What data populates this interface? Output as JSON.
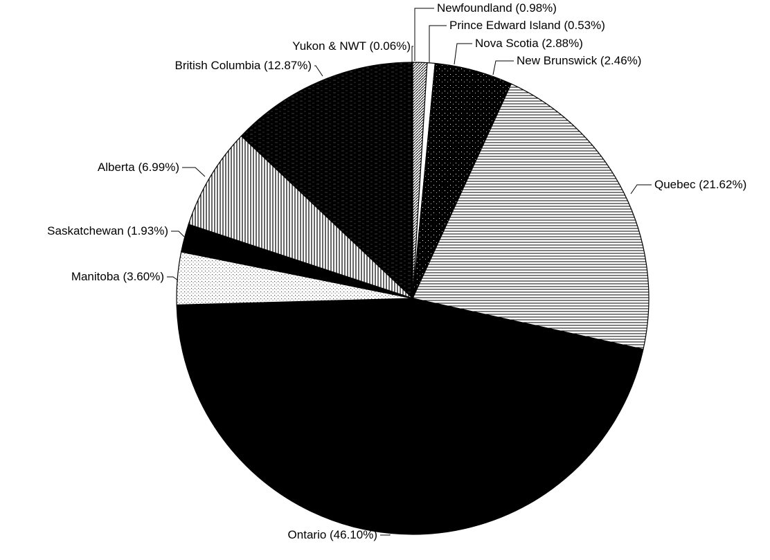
{
  "chart_data": {
    "type": "pie",
    "slices": [
      {
        "label": "Newfoundland (0.98%)",
        "value": 0.98
      },
      {
        "label": "Prince Edward Island (0.53%)",
        "value": 0.53
      },
      {
        "label": "Nova Scotia (2.88%)",
        "value": 2.88
      },
      {
        "label": "New Brunswick (2.46%)",
        "value": 2.46
      },
      {
        "label": "Quebec (21.62%)",
        "value": 21.62
      },
      {
        "label": "Ontario (46.10%)",
        "value": 46.1
      },
      {
        "label": "Manitoba (3.60%)",
        "value": 3.6
      },
      {
        "label": "Saskatchewan (1.93%)",
        "value": 1.93
      },
      {
        "label": "Alberta (6.99%)",
        "value": 6.99
      },
      {
        "label": "British Columbia (12.87%)",
        "value": 12.87
      },
      {
        "label": "Yukon & NWT (0.06%)",
        "value": 0.06
      }
    ],
    "fills": [
      "hatch-diag",
      "white",
      "black-speckle",
      "black-speckle",
      "hlines",
      "black",
      "dots",
      "black",
      "vlines",
      "black-streaks",
      "white"
    ]
  }
}
